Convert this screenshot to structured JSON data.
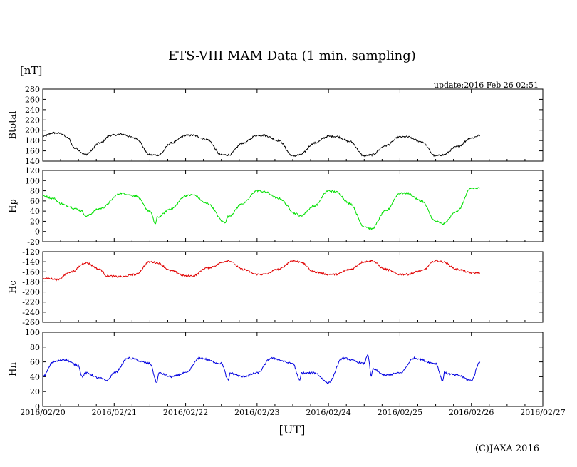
{
  "chart_data": {
    "type": "line",
    "title": "ETS-VIII MAM Data (1 min. sampling)",
    "unit_label": "[nT]",
    "update_text": "update:2016 Feb 26 02:51",
    "xlabel": "[UT]",
    "credit": "(C)JAXA 2016",
    "x_ticks": [
      "2016/02/20",
      "2016/02/21",
      "2016/02/22",
      "2016/02/23",
      "2016/02/24",
      "2016/02/25",
      "2016/02/26",
      "2016/02/27"
    ],
    "x_range_days": [
      0,
      7
    ],
    "panels": [
      {
        "name": "Btotal",
        "color": "#000000",
        "ylim": [
          140,
          280
        ],
        "yticks": [
          "280",
          "260",
          "240",
          "220",
          "200",
          "180",
          "160",
          "140"
        ],
        "series": {
          "x": [
            0,
            0.15,
            0.25,
            0.35,
            0.45,
            0.6,
            0.8,
            0.95,
            1.1,
            1.3,
            1.5,
            1.62,
            1.8,
            2.0,
            2.1,
            2.3,
            2.5,
            2.6,
            2.8,
            3.0,
            3.1,
            3.3,
            3.5,
            3.6,
            3.8,
            4.0,
            4.1,
            4.3,
            4.5,
            4.6,
            4.8,
            5.0,
            5.1,
            5.3,
            5.5,
            5.6,
            5.8,
            6.0,
            6.12
          ],
          "values": [
            188,
            195,
            194,
            185,
            165,
            153,
            175,
            190,
            192,
            185,
            152,
            152,
            175,
            190,
            190,
            182,
            152,
            152,
            175,
            190,
            190,
            180,
            150,
            152,
            175,
            188,
            188,
            178,
            150,
            152,
            170,
            187,
            187,
            178,
            150,
            152,
            168,
            185,
            190
          ]
        }
      },
      {
        "name": "Hp",
        "color": "#00e000",
        "ylim": [
          -20,
          120
        ],
        "yticks": [
          "120",
          "100",
          "80",
          "60",
          "40",
          "20",
          "0",
          "-20"
        ],
        "series": {
          "x": [
            0,
            0.15,
            0.25,
            0.35,
            0.45,
            0.55,
            0.6,
            0.8,
            1.1,
            1.3,
            1.5,
            1.58,
            1.6,
            1.8,
            2.0,
            2.1,
            2.3,
            2.55,
            2.6,
            2.8,
            3.0,
            3.1,
            3.3,
            3.55,
            3.6,
            3.8,
            4.0,
            4.1,
            4.3,
            4.5,
            4.6,
            4.8,
            5.0,
            5.1,
            5.3,
            5.5,
            5.6,
            5.8,
            6.0,
            6.12
          ],
          "values": [
            70,
            65,
            55,
            50,
            45,
            40,
            30,
            45,
            75,
            70,
            40,
            15,
            28,
            45,
            70,
            72,
            55,
            18,
            30,
            55,
            80,
            78,
            65,
            35,
            30,
            50,
            80,
            78,
            55,
            10,
            5,
            40,
            75,
            75,
            60,
            20,
            15,
            40,
            85,
            85
          ]
        }
      },
      {
        "name": "Hc",
        "color": "#e00000",
        "ylim": [
          -260,
          -120
        ],
        "yticks": [
          "-120",
          "-140",
          "-160",
          "-180",
          "-200",
          "-220",
          "-240",
          "-260"
        ],
        "series": {
          "x": [
            0,
            0.2,
            0.4,
            0.6,
            0.8,
            0.9,
            1.1,
            1.3,
            1.5,
            1.6,
            1.8,
            2.0,
            2.1,
            2.3,
            2.6,
            2.8,
            3.0,
            3.1,
            3.3,
            3.5,
            3.6,
            3.8,
            4.0,
            4.1,
            4.3,
            4.5,
            4.6,
            4.8,
            5.0,
            5.1,
            5.3,
            5.5,
            5.6,
            5.8,
            6.0,
            6.12
          ],
          "values": [
            -172,
            -175,
            -160,
            -142,
            -155,
            -168,
            -170,
            -165,
            -140,
            -142,
            -158,
            -168,
            -168,
            -152,
            -138,
            -155,
            -165,
            -165,
            -155,
            -138,
            -140,
            -160,
            -165,
            -165,
            -155,
            -140,
            -138,
            -155,
            -165,
            -165,
            -158,
            -138,
            -140,
            -155,
            -162,
            -162
          ]
        }
      },
      {
        "name": "Hn",
        "color": "#0000e0",
        "ylim": [
          0,
          100
        ],
        "yticks": [
          "100",
          "80",
          "60",
          "40",
          "20",
          "0"
        ],
        "series": {
          "x": [
            0,
            0.15,
            0.3,
            0.5,
            0.55,
            0.6,
            0.8,
            0.9,
            1.0,
            1.2,
            1.5,
            1.6,
            1.62,
            1.8,
            2.0,
            2.2,
            2.5,
            2.6,
            2.62,
            2.8,
            3.0,
            3.2,
            3.5,
            3.6,
            3.62,
            3.8,
            4.0,
            4.2,
            4.5,
            4.55,
            4.6,
            4.62,
            4.8,
            5.0,
            5.2,
            5.5,
            5.6,
            5.62,
            5.8,
            6.0,
            6.12
          ],
          "values": [
            40,
            60,
            63,
            55,
            40,
            45,
            38,
            35,
            45,
            65,
            58,
            32,
            45,
            40,
            45,
            65,
            58,
            35,
            45,
            40,
            45,
            65,
            58,
            35,
            45,
            45,
            32,
            65,
            58,
            70,
            40,
            50,
            42,
            45,
            65,
            58,
            35,
            45,
            42,
            35,
            60
          ]
        }
      }
    ],
    "grid": false,
    "legend": "none"
  }
}
